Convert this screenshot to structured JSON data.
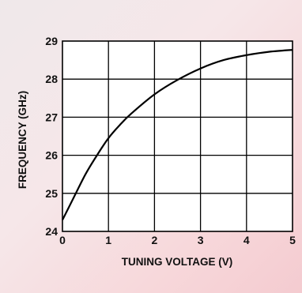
{
  "chart_data": {
    "type": "line",
    "title": "",
    "xlabel": "TUNING VOLTAGE (V)",
    "ylabel": "FREQUENCY (GHz)",
    "xlim": [
      0,
      5
    ],
    "ylim": [
      24,
      29
    ],
    "x_ticks": [
      "0",
      "1",
      "2",
      "3",
      "4",
      "5"
    ],
    "y_ticks": [
      "24",
      "25",
      "26",
      "27",
      "28",
      "29"
    ],
    "grid": true,
    "series": [
      {
        "x": [
          0,
          0.25,
          0.5,
          0.75,
          1.0,
          1.25,
          1.5,
          2.0,
          2.5,
          3.0,
          3.5,
          4.0,
          4.5,
          5.0
        ],
        "y": [
          24.3,
          24.9,
          25.5,
          26.0,
          26.45,
          26.8,
          27.1,
          27.6,
          27.98,
          28.28,
          28.5,
          28.63,
          28.72,
          28.77
        ]
      }
    ],
    "colors": {
      "line": "#000000",
      "grid": "#000000",
      "background": "#ffffff"
    }
  }
}
